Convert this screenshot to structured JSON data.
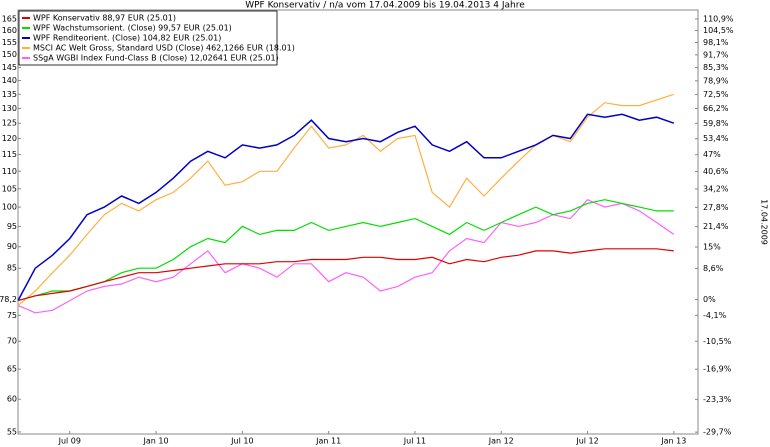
{
  "chart_data": {
    "type": "line",
    "title": "WPF Konservativ / n/a vom 17.04.2009 bis 19.04.2013 4 Jahre",
    "side_label": "17.04.2009",
    "log_scale": true,
    "grid": false,
    "legend": "top-left",
    "x": [
      2009.2,
      2009.3,
      2009.4,
      2009.5,
      2009.6,
      2009.7,
      2009.8,
      2009.9,
      2010.0,
      2010.1,
      2010.2,
      2010.3,
      2010.4,
      2010.5,
      2010.6,
      2010.7,
      2010.8,
      2010.9,
      2011.0,
      2011.1,
      2011.2,
      2011.3,
      2011.4,
      2011.5,
      2011.6,
      2011.7,
      2011.8,
      2011.9,
      2012.0,
      2012.1,
      2012.2,
      2012.3,
      2012.4,
      2012.5,
      2012.6,
      2012.7,
      2012.8,
      2012.9,
      2013.0
    ],
    "xlim": [
      2009.2,
      2013.14
    ],
    "xticks": [
      {
        "value": 2009.5,
        "label": "Jul 09"
      },
      {
        "value": 2010,
        "label": "Jan 10"
      },
      {
        "value": 2010.5,
        "label": "Jul 10"
      },
      {
        "value": 2011,
        "label": "Jan 11"
      },
      {
        "value": 2011.5,
        "label": "Jul 11"
      },
      {
        "value": 2012,
        "label": "Jan 12"
      },
      {
        "value": 2012.5,
        "label": "Jul 12"
      },
      {
        "value": 2013,
        "label": "Jan 13"
      }
    ],
    "ylim": [
      54.7,
      168.9
    ],
    "yticks": [
      165,
      160,
      155,
      150,
      145,
      140,
      135,
      130,
      125,
      120,
      115,
      110,
      105,
      100,
      95,
      90,
      85,
      {
        "value": 78.2,
        "label": "78,2"
      },
      75,
      70,
      65,
      60,
      55
    ],
    "y2lim": [
      -30.05,
      115.98
    ],
    "y2ticks": [
      {
        "value": 110.9,
        "label": "110,9%"
      },
      {
        "value": 104.5,
        "label": "104,5%"
      },
      {
        "value": 98.1,
        "label": "98,1%"
      },
      {
        "value": 91.7,
        "label": "91,7%"
      },
      {
        "value": 85.3,
        "label": "85,3%"
      },
      {
        "value": 78.9,
        "label": "78,9%"
      },
      {
        "value": 72.5,
        "label": "72,5%"
      },
      {
        "value": 66.2,
        "label": "66,2%"
      },
      {
        "value": 59.8,
        "label": "59,8%"
      },
      {
        "value": 53.4,
        "label": "53,4%"
      },
      {
        "value": 47,
        "label": "47%"
      },
      {
        "value": 40.6,
        "label": "40,6%"
      },
      {
        "value": 34.2,
        "label": "34,2%"
      },
      {
        "value": 27.8,
        "label": "27,8%"
      },
      {
        "value": 21.4,
        "label": "21,4%"
      },
      {
        "value": 15,
        "label": "15%"
      },
      {
        "value": 8.6,
        "label": "8,6%"
      },
      {
        "value": 0,
        "label": "0%"
      },
      {
        "value": -4.1,
        "label": "-4,1%"
      },
      {
        "value": -10.5,
        "label": "-10,5%"
      },
      {
        "value": -16.9,
        "label": "-16,9%"
      },
      {
        "value": -23.3,
        "label": "-23,3%"
      },
      {
        "value": -29.7,
        "label": "-29,7%"
      }
    ],
    "series": [
      {
        "name": "WPF Konservativ 88,97 EUR (25.01)",
        "color": "#e00000",
        "values": [
          78,
          79,
          79.5,
          80,
          81,
          82,
          83,
          84,
          84,
          84.5,
          85,
          85.5,
          86,
          86,
          86,
          86.5,
          86.5,
          87,
          87,
          87,
          87.5,
          87.5,
          87,
          87,
          87.5,
          86,
          87,
          86.5,
          87.5,
          88,
          89,
          89,
          88.5,
          89,
          89.5,
          89.5,
          89.5,
          89.5,
          89
        ]
      },
      {
        "name": "WPF Wachstumsorient. (Close) 99,57 EUR (25.01)",
        "color": "#00e000",
        "values": [
          78,
          79,
          80,
          80,
          81,
          82,
          84,
          85,
          85,
          87,
          90,
          92,
          91,
          95,
          93,
          94,
          94,
          96,
          94,
          95,
          96,
          95,
          96,
          97,
          95,
          93,
          96,
          94,
          96,
          98,
          100,
          98,
          99,
          101,
          102,
          101,
          100,
          99,
          99
        ]
      },
      {
        "name": "WPF Renditeorient. (Close) 104,82 EUR (25.01)",
        "color": "#0000c8",
        "values": [
          78,
          85,
          88,
          92,
          98,
          100,
          103,
          101,
          104,
          108,
          113,
          116,
          114,
          118,
          117,
          118,
          121,
          126,
          120,
          119,
          120,
          119,
          122,
          124,
          118,
          116,
          119,
          114,
          114,
          116,
          118,
          121,
          120,
          128,
          127,
          128,
          126,
          127,
          125
        ]
      },
      {
        "name": "MSCI AC Welt Gross, Standard USD (Close) 462,1266 EUR (18.01)",
        "color": "#ffb040",
        "values": [
          77,
          80,
          84,
          88,
          93,
          98,
          101,
          99,
          102,
          104,
          108,
          113,
          106,
          107,
          110,
          110,
          117,
          124,
          117,
          118,
          121,
          116,
          120,
          121,
          104,
          100,
          108,
          103,
          108,
          113,
          118,
          121,
          119,
          127,
          132,
          131,
          131,
          133,
          135
        ]
      },
      {
        "name": "SSgA WGBI Index Fund-Class B (Close) 12,02641 EUR (25.01)",
        "color": "#ff60ff",
        "values": [
          77,
          75.5,
          76,
          78,
          80,
          81,
          81.5,
          83,
          82,
          83,
          86,
          89,
          84,
          86,
          85,
          83,
          86,
          86,
          82,
          84,
          83,
          80,
          81,
          83,
          84,
          89,
          92,
          91,
          96,
          95,
          96,
          98,
          97,
          102,
          100,
          101,
          99,
          96,
          93
        ]
      }
    ]
  }
}
